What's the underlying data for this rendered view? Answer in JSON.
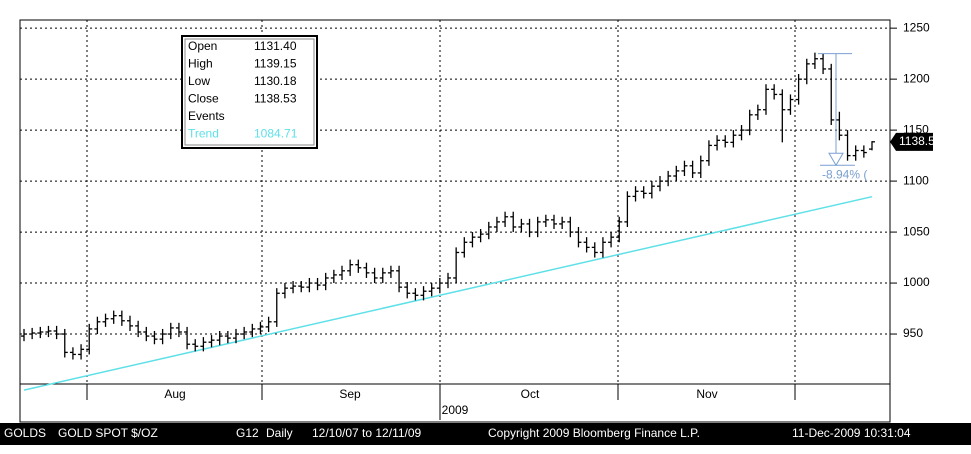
{
  "chart_data": {
    "type": "ohlc",
    "color": "#000000",
    "ylim": [
      901,
      1258
    ],
    "yticks": [
      950,
      1000,
      1050,
      1100,
      1150,
      1200,
      1250
    ],
    "grid": true,
    "xlim": [
      0,
      104
    ],
    "categories": [
      "Aug",
      "Sep",
      "Oct",
      "Nov"
    ],
    "year_label": "2009",
    "ohlc": [
      [
        948,
        955,
        943,
        950
      ],
      [
        950,
        956,
        945,
        951
      ],
      [
        951,
        957,
        946,
        952
      ],
      [
        952,
        958,
        947,
        953
      ],
      [
        953,
        958,
        945,
        950
      ],
      [
        950,
        955,
        927,
        932
      ],
      [
        932,
        937,
        925,
        930
      ],
      [
        930,
        940,
        925,
        935
      ],
      [
        935,
        960,
        930,
        955
      ],
      [
        955,
        967,
        950,
        962
      ],
      [
        962,
        970,
        957,
        965
      ],
      [
        965,
        973,
        960,
        968
      ],
      [
        968,
        973,
        958,
        963
      ],
      [
        963,
        968,
        953,
        958
      ],
      [
        958,
        963,
        947,
        952
      ],
      [
        952,
        957,
        943,
        948
      ],
      [
        948,
        953,
        940,
        945
      ],
      [
        945,
        955,
        940,
        950
      ],
      [
        950,
        961,
        945,
        956
      ],
      [
        956,
        961,
        947,
        952
      ],
      [
        952,
        957,
        935,
        940
      ],
      [
        940,
        945,
        933,
        938
      ],
      [
        938,
        947,
        933,
        942
      ],
      [
        942,
        949,
        937,
        944
      ],
      [
        944,
        953,
        939,
        948
      ],
      [
        948,
        953,
        941,
        946
      ],
      [
        946,
        955,
        941,
        950
      ],
      [
        950,
        957,
        945,
        952
      ],
      [
        952,
        960,
        947,
        955
      ],
      [
        955,
        962,
        950,
        957
      ],
      [
        957,
        967,
        952,
        962
      ],
      [
        962,
        995,
        957,
        990
      ],
      [
        990,
        1000,
        985,
        995
      ],
      [
        995,
        1002,
        990,
        997
      ],
      [
        997,
        1002,
        991,
        996
      ],
      [
        996,
        1005,
        991,
        1000
      ],
      [
        1000,
        1005,
        993,
        998
      ],
      [
        998,
        1010,
        993,
        1005
      ],
      [
        1005,
        1013,
        1000,
        1008
      ],
      [
        1008,
        1017,
        1003,
        1012
      ],
      [
        1012,
        1023,
        1007,
        1018
      ],
      [
        1018,
        1023,
        1010,
        1015
      ],
      [
        1015,
        1020,
        1005,
        1010
      ],
      [
        1010,
        1015,
        1000,
        1005
      ],
      [
        1005,
        1015,
        1000,
        1010
      ],
      [
        1010,
        1017,
        1005,
        1012
      ],
      [
        1012,
        1017,
        991,
        996
      ],
      [
        996,
        1001,
        985,
        990
      ],
      [
        990,
        995,
        983,
        988
      ],
      [
        988,
        997,
        983,
        992
      ],
      [
        992,
        1000,
        987,
        995
      ],
      [
        995,
        1005,
        990,
        1000
      ],
      [
        1000,
        1010,
        995,
        1005
      ],
      [
        1005,
        1035,
        1000,
        1030
      ],
      [
        1030,
        1045,
        1025,
        1040
      ],
      [
        1040,
        1050,
        1035,
        1045
      ],
      [
        1045,
        1053,
        1040,
        1048
      ],
      [
        1048,
        1060,
        1043,
        1055
      ],
      [
        1055,
        1065,
        1050,
        1060
      ],
      [
        1060,
        1070,
        1055,
        1065
      ],
      [
        1065,
        1070,
        1050,
        1055
      ],
      [
        1055,
        1063,
        1050,
        1058
      ],
      [
        1058,
        1063,
        1045,
        1050
      ],
      [
        1050,
        1065,
        1045,
        1060
      ],
      [
        1060,
        1067,
        1055,
        1062
      ],
      [
        1062,
        1067,
        1053,
        1058
      ],
      [
        1058,
        1065,
        1053,
        1060
      ],
      [
        1060,
        1065,
        1045,
        1050
      ],
      [
        1050,
        1055,
        1035,
        1040
      ],
      [
        1040,
        1045,
        1030,
        1035
      ],
      [
        1035,
        1040,
        1025,
        1030
      ],
      [
        1030,
        1045,
        1025,
        1040
      ],
      [
        1040,
        1050,
        1035,
        1045
      ],
      [
        1045,
        1065,
        1040,
        1060
      ],
      [
        1060,
        1090,
        1055,
        1085
      ],
      [
        1085,
        1095,
        1080,
        1090
      ],
      [
        1090,
        1095,
        1083,
        1088
      ],
      [
        1088,
        1100,
        1083,
        1095
      ],
      [
        1095,
        1105,
        1090,
        1100
      ],
      [
        1100,
        1110,
        1095,
        1105
      ],
      [
        1105,
        1115,
        1100,
        1110
      ],
      [
        1110,
        1120,
        1105,
        1115
      ],
      [
        1115,
        1120,
        1103,
        1108
      ],
      [
        1108,
        1125,
        1103,
        1120
      ],
      [
        1120,
        1140,
        1115,
        1135
      ],
      [
        1135,
        1145,
        1130,
        1140
      ],
      [
        1140,
        1145,
        1133,
        1138
      ],
      [
        1138,
        1150,
        1133,
        1145
      ],
      [
        1145,
        1155,
        1140,
        1150
      ],
      [
        1150,
        1170,
        1145,
        1165
      ],
      [
        1165,
        1175,
        1160,
        1170
      ],
      [
        1170,
        1195,
        1165,
        1190
      ],
      [
        1190,
        1195,
        1180,
        1185
      ],
      [
        1185,
        1190,
        1138,
        1170
      ],
      [
        1170,
        1185,
        1165,
        1180
      ],
      [
        1180,
        1205,
        1175,
        1200
      ],
      [
        1200,
        1220,
        1195,
        1215
      ],
      [
        1215,
        1226,
        1210,
        1220
      ],
      [
        1220,
        1225,
        1205,
        1210
      ],
      [
        1210,
        1215,
        1155,
        1160
      ],
      [
        1160,
        1168,
        1140,
        1145
      ],
      [
        1145,
        1150,
        1120,
        1125
      ],
      [
        1125,
        1135,
        1120,
        1130
      ],
      [
        1130,
        1135,
        1123,
        1128
      ],
      [
        1131.4,
        1139.15,
        1130.18,
        1138.53
      ]
    ],
    "trend": {
      "name": "Trend",
      "x": [
        0,
        104
      ],
      "values": [
        895,
        1084.71
      ],
      "color": "#5ee0e8"
    },
    "info_rows": [
      "Open",
      "High",
      "Low",
      "Close",
      "Events"
    ],
    "info_values": [
      "1131.40",
      "1139.15",
      "1130.18",
      "1138.53"
    ],
    "measure": {
      "from": 1225,
      "to": 1115.5,
      "label": "-8.94% (",
      "color": "#7aa0d0"
    },
    "footer": [
      "GOLDS",
      "GOLD SPOT $/OZ",
      "G12",
      "Daily",
      "12/10/07 to 12/11/09",
      "Copyright 2009 Bloomberg Finance L.P.",
      "11-Dec-2009 10:31:04"
    ]
  }
}
